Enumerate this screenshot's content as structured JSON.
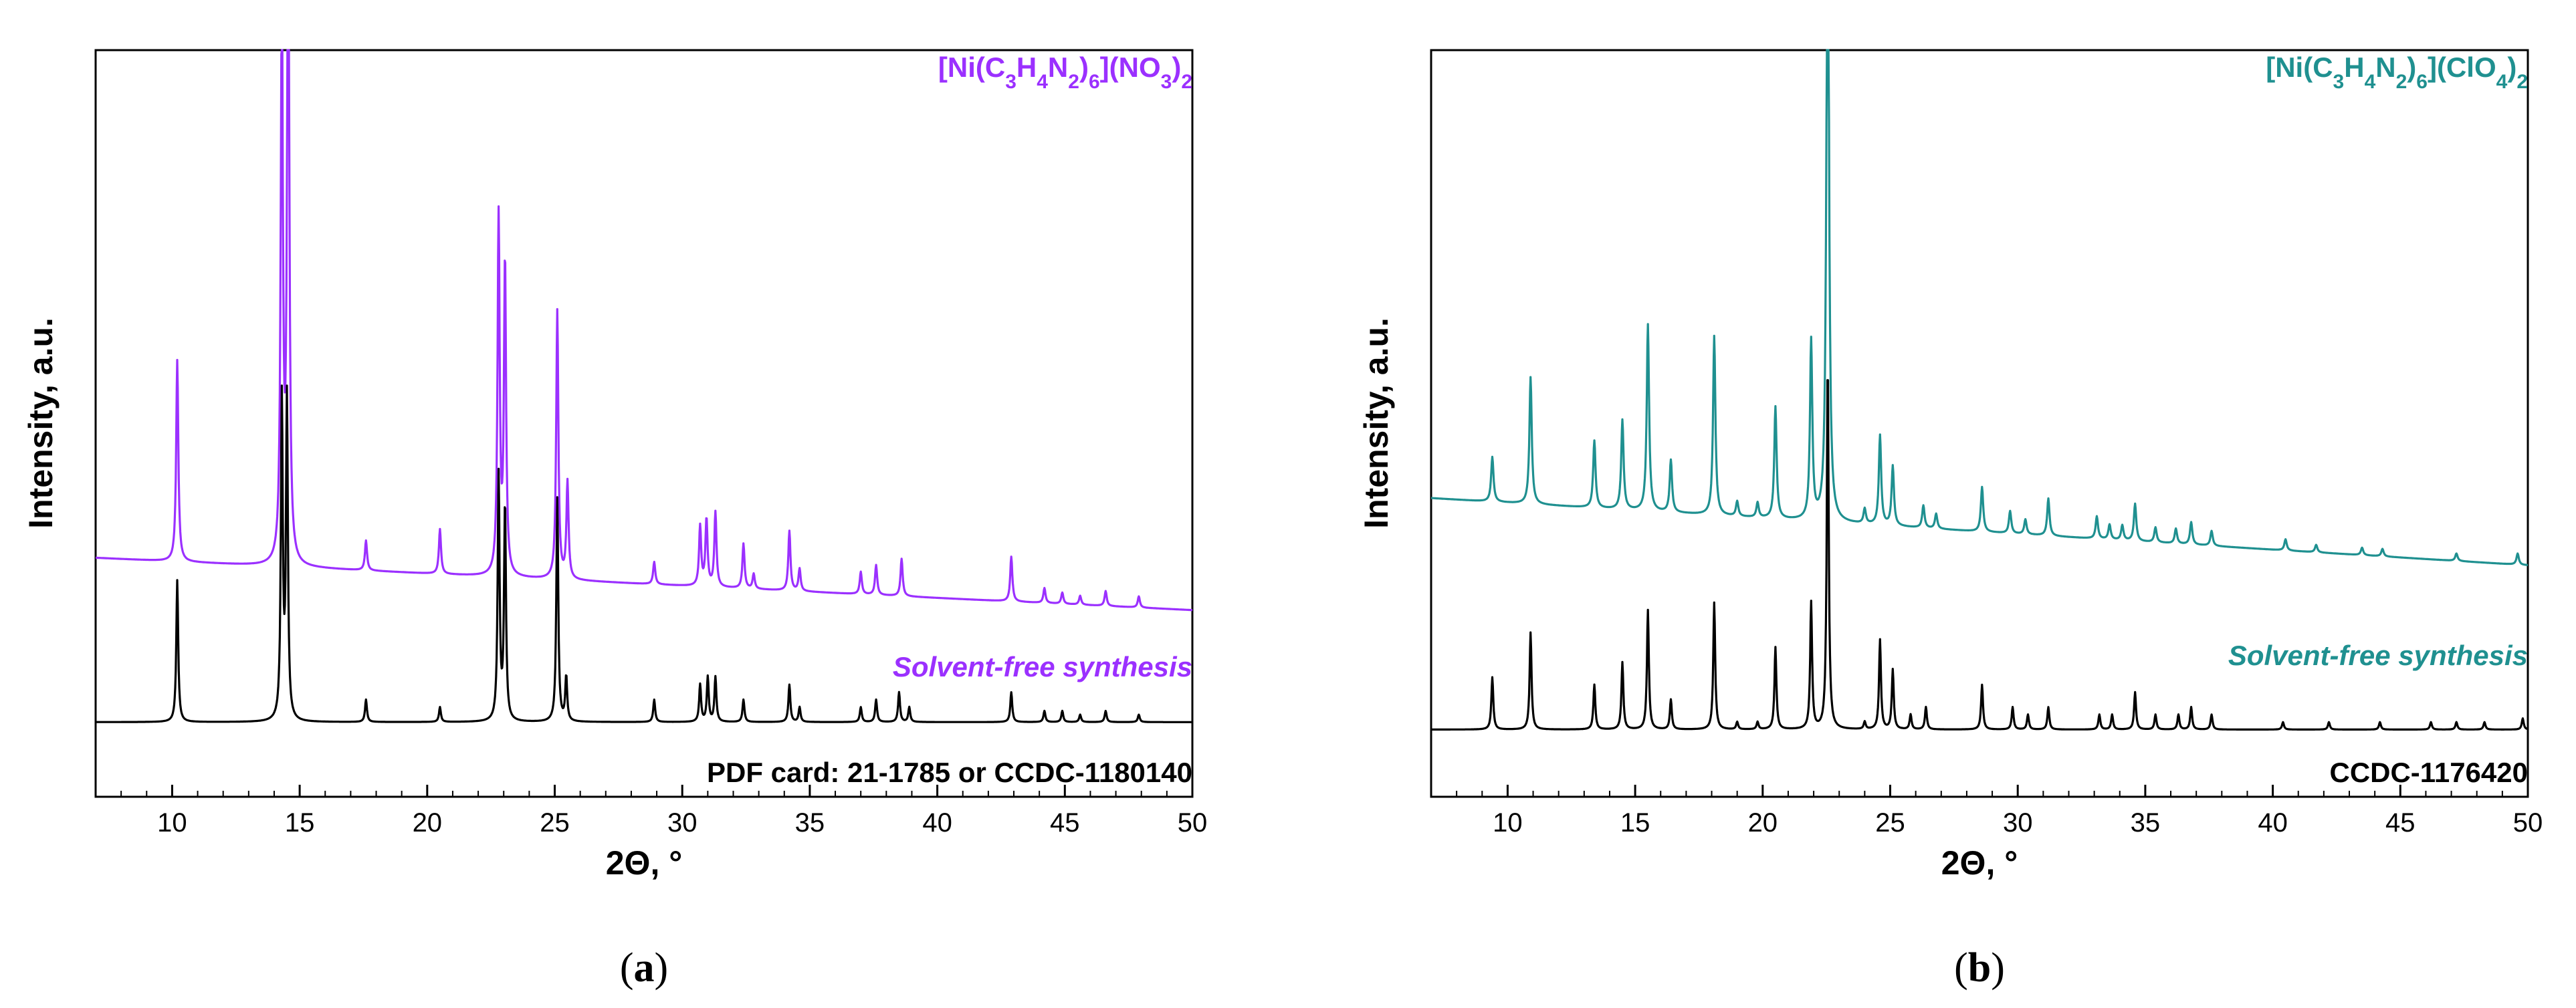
{
  "chart_data": [
    {
      "type": "line",
      "panel": "a",
      "caption_letter": "a",
      "xlabel": "2Θ, °",
      "ylabel": "Intensity, a.u.",
      "xlim": [
        7,
        50
      ],
      "xticks": [
        10,
        15,
        20,
        25,
        30,
        35,
        40,
        45,
        50
      ],
      "ylim": [
        0,
        1
      ],
      "title_parts": [
        {
          "t": "[Ni(C"
        },
        {
          "t": "3",
          "sub": true
        },
        {
          "t": "H"
        },
        {
          "t": "4",
          "sub": true
        },
        {
          "t": "N"
        },
        {
          "t": "2",
          "sub": true
        },
        {
          "t": ")"
        },
        {
          "t": "6",
          "sub": true
        },
        {
          "t": "](NO"
        },
        {
          "t": "3",
          "sub": true
        },
        {
          "t": ")"
        },
        {
          "t": "2",
          "sub": true
        }
      ],
      "title_color": "#9b30ff",
      "series": [
        {
          "name": "Solvent-free synthesis",
          "color": "#9b30ff",
          "baseline_start": 0.32,
          "baseline_end": 0.25,
          "width": 0.05,
          "peaks": [
            [
              10.2,
              0.27
            ],
            [
              14.3,
              0.76
            ],
            [
              14.55,
              0.94
            ],
            [
              17.6,
              0.04
            ],
            [
              20.5,
              0.06
            ],
            [
              22.8,
              0.48
            ],
            [
              23.05,
              0.42
            ],
            [
              25.1,
              0.36
            ],
            [
              25.5,
              0.13
            ],
            [
              28.9,
              0.03
            ],
            [
              30.7,
              0.08
            ],
            [
              30.95,
              0.09
            ],
            [
              31.3,
              0.1
            ],
            [
              32.4,
              0.06
            ],
            [
              32.8,
              0.02
            ],
            [
              34.2,
              0.08
            ],
            [
              34.6,
              0.03
            ],
            [
              37.0,
              0.03
            ],
            [
              37.6,
              0.04
            ],
            [
              38.6,
              0.05
            ],
            [
              42.9,
              0.06
            ],
            [
              44.2,
              0.02
            ],
            [
              44.9,
              0.015
            ],
            [
              45.6,
              0.012
            ],
            [
              46.6,
              0.02
            ],
            [
              47.9,
              0.015
            ]
          ]
        },
        {
          "name": "PDF card: 21-1785 or CCDC-1180140",
          "color": "#000000",
          "baseline_start": 0.1,
          "baseline_end": 0.1,
          "width": 0.045,
          "peaks": [
            [
              10.2,
              0.19
            ],
            [
              14.3,
              0.43
            ],
            [
              14.5,
              0.43
            ],
            [
              17.6,
              0.03
            ],
            [
              20.5,
              0.02
            ],
            [
              22.8,
              0.33
            ],
            [
              23.05,
              0.29
            ],
            [
              25.1,
              0.3
            ],
            [
              25.45,
              0.06
            ],
            [
              28.9,
              0.03
            ],
            [
              30.7,
              0.05
            ],
            [
              31.0,
              0.06
            ],
            [
              31.3,
              0.06
            ],
            [
              32.4,
              0.03
            ],
            [
              34.2,
              0.05
            ],
            [
              34.6,
              0.02
            ],
            [
              37.0,
              0.02
            ],
            [
              37.6,
              0.03
            ],
            [
              38.5,
              0.04
            ],
            [
              38.9,
              0.02
            ],
            [
              42.9,
              0.04
            ],
            [
              44.2,
              0.015
            ],
            [
              44.9,
              0.015
            ],
            [
              45.6,
              0.01
            ],
            [
              46.6,
              0.015
            ],
            [
              47.9,
              0.01
            ]
          ]
        }
      ]
    },
    {
      "type": "line",
      "panel": "b",
      "caption_letter": "b",
      "xlabel": "2Θ, °",
      "ylabel": "Intensity, a.u.",
      "xlim": [
        7,
        50
      ],
      "xticks": [
        10,
        15,
        20,
        25,
        30,
        35,
        40,
        45,
        50
      ],
      "ylim": [
        0,
        1
      ],
      "title_parts": [
        {
          "t": "[Ni(C"
        },
        {
          "t": "3",
          "sub": true
        },
        {
          "t": "H"
        },
        {
          "t": "4",
          "sub": true
        },
        {
          "t": "N"
        },
        {
          "t": "2",
          "sub": true
        },
        {
          "t": ")"
        },
        {
          "t": "6",
          "sub": true
        },
        {
          "t": "](ClO"
        },
        {
          "t": "4",
          "sub": true
        },
        {
          "t": ")"
        },
        {
          "t": "2",
          "sub": true
        }
      ],
      "title_color": "#1f9090",
      "series": [
        {
          "name": "Solvent-free synthesis",
          "color": "#1f9090",
          "baseline_start": 0.4,
          "baseline_end": 0.31,
          "width": 0.055,
          "peaks": [
            [
              9.4,
              0.06
            ],
            [
              10.9,
              0.17
            ],
            [
              13.4,
              0.09
            ],
            [
              14.5,
              0.12
            ],
            [
              15.5,
              0.25
            ],
            [
              16.4,
              0.07
            ],
            [
              18.1,
              0.24
            ],
            [
              19.0,
              0.02
            ],
            [
              19.8,
              0.02
            ],
            [
              20.5,
              0.15
            ],
            [
              21.9,
              0.24
            ],
            [
              22.55,
              0.98
            ],
            [
              24.0,
              0.02
            ],
            [
              24.6,
              0.12
            ],
            [
              25.1,
              0.08
            ],
            [
              26.3,
              0.03
            ],
            [
              26.8,
              0.02
            ],
            [
              28.6,
              0.06
            ],
            [
              29.7,
              0.03
            ],
            [
              30.3,
              0.02
            ],
            [
              31.2,
              0.05
            ],
            [
              33.1,
              0.03
            ],
            [
              33.6,
              0.02
            ],
            [
              34.1,
              0.02
            ],
            [
              34.6,
              0.05
            ],
            [
              35.4,
              0.02
            ],
            [
              36.2,
              0.02
            ],
            [
              36.8,
              0.03
            ],
            [
              37.6,
              0.02
            ],
            [
              40.5,
              0.015
            ],
            [
              41.7,
              0.01
            ],
            [
              43.5,
              0.01
            ],
            [
              44.3,
              0.01
            ],
            [
              47.2,
              0.01
            ],
            [
              49.6,
              0.015
            ]
          ]
        },
        {
          "name": "CCDC-1176420",
          "color": "#000000",
          "baseline_start": 0.09,
          "baseline_end": 0.09,
          "width": 0.045,
          "peaks": [
            [
              9.4,
              0.07
            ],
            [
              10.9,
              0.13
            ],
            [
              13.4,
              0.06
            ],
            [
              14.5,
              0.09
            ],
            [
              15.5,
              0.16
            ],
            [
              16.4,
              0.04
            ],
            [
              18.1,
              0.17
            ],
            [
              19.0,
              0.01
            ],
            [
              19.8,
              0.01
            ],
            [
              20.5,
              0.11
            ],
            [
              21.9,
              0.17
            ],
            [
              22.55,
              0.49
            ],
            [
              24.0,
              0.01
            ],
            [
              24.6,
              0.12
            ],
            [
              25.1,
              0.08
            ],
            [
              25.8,
              0.02
            ],
            [
              26.4,
              0.03
            ],
            [
              28.6,
              0.06
            ],
            [
              29.8,
              0.03
            ],
            [
              30.4,
              0.02
            ],
            [
              31.2,
              0.03
            ],
            [
              33.2,
              0.02
            ],
            [
              33.7,
              0.02
            ],
            [
              34.6,
              0.05
            ],
            [
              35.4,
              0.02
            ],
            [
              36.3,
              0.02
            ],
            [
              36.8,
              0.03
            ],
            [
              37.6,
              0.02
            ],
            [
              40.4,
              0.01
            ],
            [
              42.2,
              0.01
            ],
            [
              44.2,
              0.01
            ],
            [
              46.2,
              0.01
            ],
            [
              47.2,
              0.01
            ],
            [
              48.3,
              0.01
            ],
            [
              49.8,
              0.015
            ]
          ]
        }
      ]
    }
  ]
}
